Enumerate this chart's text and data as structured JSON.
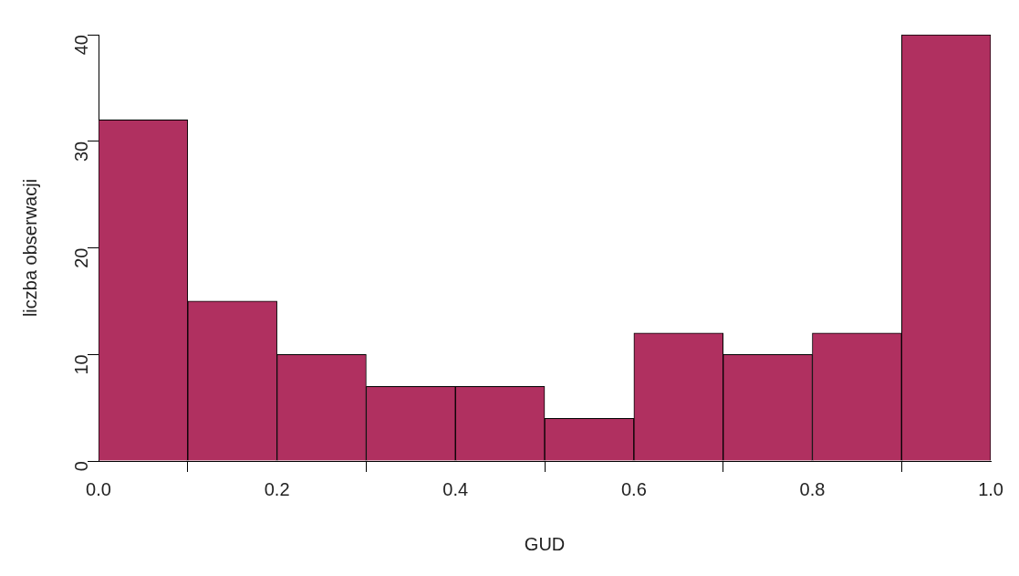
{
  "chart_data": {
    "type": "histogram",
    "xlabel": "GUD",
    "ylabel": "liczba obserwacji",
    "bins": [
      0,
      0.1,
      0.2,
      0.3,
      0.4,
      0.5,
      0.6,
      0.7,
      0.8,
      0.9,
      1.0
    ],
    "values": [
      32,
      15,
      10,
      7,
      7,
      4,
      12,
      10,
      12,
      40
    ],
    "color": "#b03060",
    "xlim": [
      0,
      1
    ],
    "xticks": [
      {
        "value": 0,
        "label": "0.0"
      },
      {
        "value": 0.2,
        "label": "0.2"
      },
      {
        "value": 0.4,
        "label": "0.4"
      },
      {
        "value": 0.6,
        "label": "0.6"
      },
      {
        "value": 0.8,
        "label": "0.8"
      },
      {
        "value": 1,
        "label": "1.0"
      }
    ],
    "ylim": [
      0,
      40
    ],
    "yticks": [
      0,
      10,
      20,
      30,
      40
    ],
    "grid": false,
    "legend": false
  }
}
